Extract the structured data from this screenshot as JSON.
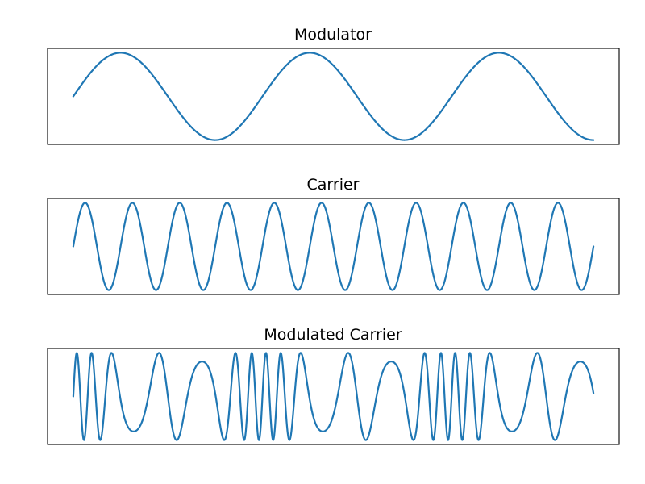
{
  "chart_data": [
    {
      "type": "line",
      "title": "Modulator",
      "xlabel": "",
      "ylabel": "",
      "grid": false,
      "axis_ticks": false,
      "x_range": [
        0,
        1
      ],
      "ylim": [
        -1.1,
        1.1
      ],
      "series": [
        {
          "function": "sin(2*pi*f*t)",
          "frequency_cycles": 2.75,
          "amplitude": 1.0,
          "color": "#1f77b4"
        }
      ]
    },
    {
      "type": "line",
      "title": "Carrier",
      "xlabel": "",
      "ylabel": "",
      "grid": false,
      "axis_ticks": false,
      "x_range": [
        0,
        1
      ],
      "ylim": [
        -1.1,
        1.1
      ],
      "series": [
        {
          "function": "sin(2*pi*f*t)",
          "frequency_cycles": 11,
          "amplitude": 1.0,
          "color": "#1f77b4"
        }
      ]
    },
    {
      "type": "line",
      "title": "Modulated Carrier",
      "xlabel": "",
      "ylabel": "",
      "grid": false,
      "axis_ticks": false,
      "x_range": [
        0,
        1
      ],
      "ylim": [
        -1.1,
        1.1
      ],
      "series": [
        {
          "function": "sin(2*pi*fc*t + beta*sin(2*pi*fm*t))",
          "carrier_cycles": 11,
          "modulator_cycles": 2.75,
          "modulation_index": 9.5,
          "amplitude": 1.0,
          "color": "#1f77b4"
        }
      ]
    }
  ]
}
